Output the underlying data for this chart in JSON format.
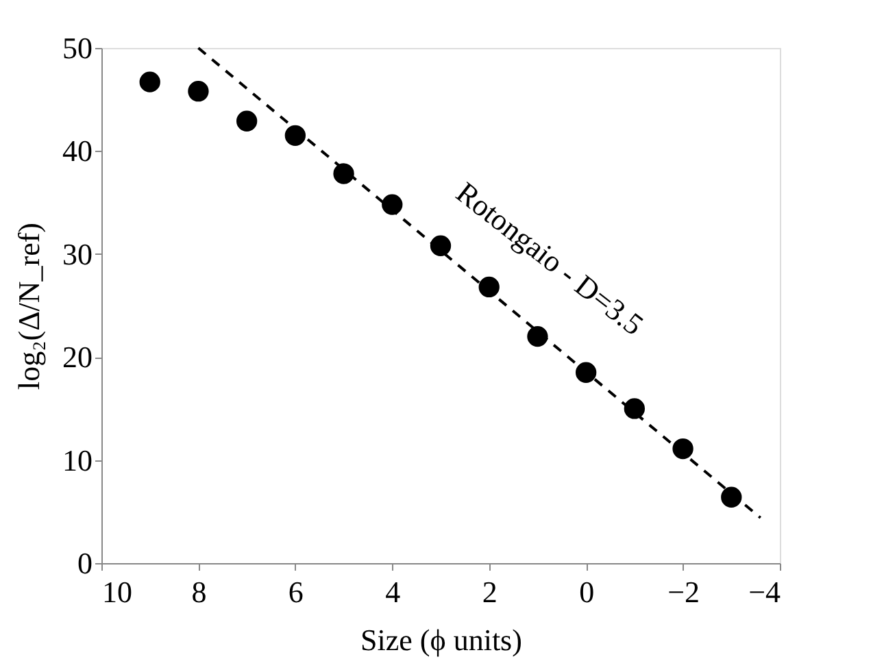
{
  "chart_data": {
    "type": "scatter",
    "xlabel": "Size (ϕ units)",
    "ylabel": "log₂(Δ/N_ref)",
    "x": [
      9,
      8,
      7,
      6,
      5,
      4,
      3,
      2,
      1,
      0,
      -1,
      -2,
      -3
    ],
    "series": [
      {
        "color": "#000000",
        "marker": "circle",
        "values": [
          46.7,
          45.8,
          42.9,
          41.5,
          37.8,
          34.8,
          30.8,
          26.8,
          22.0,
          18.5,
          15.0,
          11.1,
          6.4
        ]
      },
      {
        "type": "line",
        "color": "#000000",
        "line_style": "dashed",
        "marker": "none",
        "x": [
          8,
          -3.6
        ],
        "values": [
          50,
          4.4
        ]
      }
    ],
    "annotations": [
      "Rotongaio - D=3.5"
    ],
    "xlim": [
      10,
      -4
    ],
    "xticks": [
      10,
      8,
      6,
      4,
      2,
      0,
      -2,
      -4
    ],
    "ylim": [
      0,
      50
    ],
    "yticks": [
      0,
      10,
      20,
      30,
      40,
      50
    ],
    "grid": false
  }
}
